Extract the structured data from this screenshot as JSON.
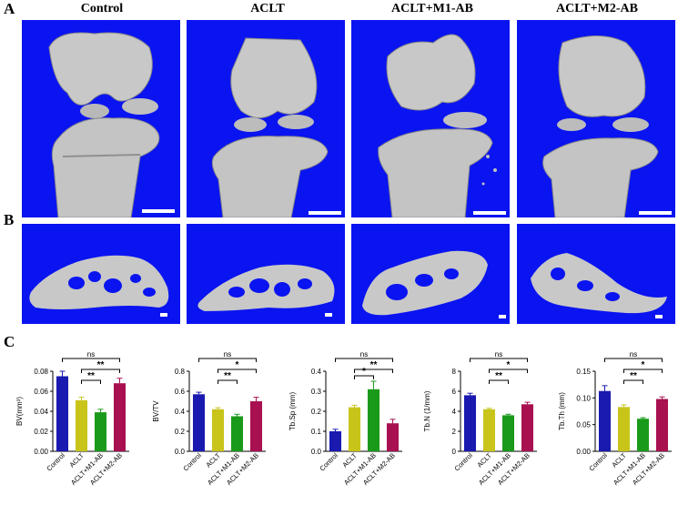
{
  "figure": {
    "panel_labels": [
      "A",
      "B",
      "C"
    ],
    "groups": [
      "Control",
      "ACLT",
      "ACLT+M1-AB",
      "ACLT+M2-AB"
    ],
    "image_background": "#0a14f0",
    "bone_color": "#c8c8c8"
  },
  "chart_data": [
    {
      "type": "bar",
      "ylabel": "BV(mm³)",
      "categories": [
        "Control",
        "ACLT",
        "ACLT+M1-AB",
        "ACLT+M2-AB"
      ],
      "values": [
        0.075,
        0.051,
        0.039,
        0.068
      ],
      "errors": [
        0.005,
        0.003,
        0.003,
        0.005
      ],
      "ylim": [
        0,
        0.08
      ],
      "yticks": [
        "0.00",
        "0.02",
        "0.04",
        "0.06",
        "0.08"
      ],
      "colors": [
        "#1a1ab0",
        "#c8c41a",
        "#1a9a1a",
        "#a81050"
      ],
      "significance": [
        {
          "from": 0,
          "to": 3,
          "label": "ns"
        },
        {
          "from": 1,
          "to": 3,
          "label": "**"
        },
        {
          "from": 1,
          "to": 2,
          "label": "**"
        }
      ]
    },
    {
      "type": "bar",
      "ylabel": "BV/TV",
      "categories": [
        "Control",
        "ACLT",
        "ACLT+M1-AB",
        "ACLT+M2-AB"
      ],
      "values": [
        0.57,
        0.42,
        0.35,
        0.5
      ],
      "errors": [
        0.02,
        0.015,
        0.02,
        0.04
      ],
      "ylim": [
        0,
        0.8
      ],
      "yticks": [
        "0.0",
        "0.2",
        "0.4",
        "0.6",
        "0.8"
      ],
      "colors": [
        "#1a1ab0",
        "#c8c41a",
        "#1a9a1a",
        "#a81050"
      ],
      "significance": [
        {
          "from": 0,
          "to": 3,
          "label": "ns"
        },
        {
          "from": 1,
          "to": 3,
          "label": "*"
        },
        {
          "from": 1,
          "to": 2,
          "label": "**"
        }
      ]
    },
    {
      "type": "bar",
      "ylabel": "Tb.Sp (mm)",
      "categories": [
        "Control",
        "ACLT",
        "ACLT+M1-AB",
        "ACLT+M2-AB"
      ],
      "values": [
        0.1,
        0.22,
        0.31,
        0.14
      ],
      "errors": [
        0.01,
        0.01,
        0.04,
        0.02
      ],
      "ylim": [
        0,
        0.4
      ],
      "yticks": [
        "0.0",
        "0.1",
        "0.2",
        "0.3",
        "0.4"
      ],
      "colors": [
        "#1a1ab0",
        "#c8c41a",
        "#1a9a1a",
        "#a81050"
      ],
      "significance": [
        {
          "from": 0,
          "to": 3,
          "label": "ns"
        },
        {
          "from": 1,
          "to": 3,
          "label": "**"
        },
        {
          "from": 1,
          "to": 2,
          "label": "*"
        }
      ]
    },
    {
      "type": "bar",
      "ylabel": "Tb.N (1/mm)",
      "categories": [
        "Control",
        "ACLT",
        "ACLT+M1-AB",
        "ACLT+M2-AB"
      ],
      "values": [
        5.6,
        4.2,
        3.6,
        4.7
      ],
      "errors": [
        0.2,
        0.1,
        0.1,
        0.2
      ],
      "ylim": [
        0,
        8
      ],
      "yticks": [
        "0",
        "2",
        "4",
        "6",
        "8"
      ],
      "colors": [
        "#1a1ab0",
        "#c8c41a",
        "#1a9a1a",
        "#a81050"
      ],
      "significance": [
        {
          "from": 0,
          "to": 3,
          "label": "ns"
        },
        {
          "from": 1,
          "to": 3,
          "label": "*"
        },
        {
          "from": 1,
          "to": 2,
          "label": "**"
        }
      ]
    },
    {
      "type": "bar",
      "ylabel": "Tb.Th (mm)",
      "categories": [
        "Control",
        "ACLT",
        "ACLT+M1-AB",
        "ACLT+M2-AB"
      ],
      "values": [
        0.113,
        0.083,
        0.061,
        0.098
      ],
      "errors": [
        0.01,
        0.004,
        0.002,
        0.004
      ],
      "ylim": [
        0,
        0.15
      ],
      "yticks": [
        "0.00",
        "0.05",
        "0.10",
        "0.15"
      ],
      "colors": [
        "#1a1ab0",
        "#c8c41a",
        "#1a9a1a",
        "#a81050"
      ],
      "significance": [
        {
          "from": 0,
          "to": 3,
          "label": "ns"
        },
        {
          "from": 1,
          "to": 3,
          "label": "*"
        },
        {
          "from": 1,
          "to": 2,
          "label": "**"
        }
      ]
    }
  ]
}
